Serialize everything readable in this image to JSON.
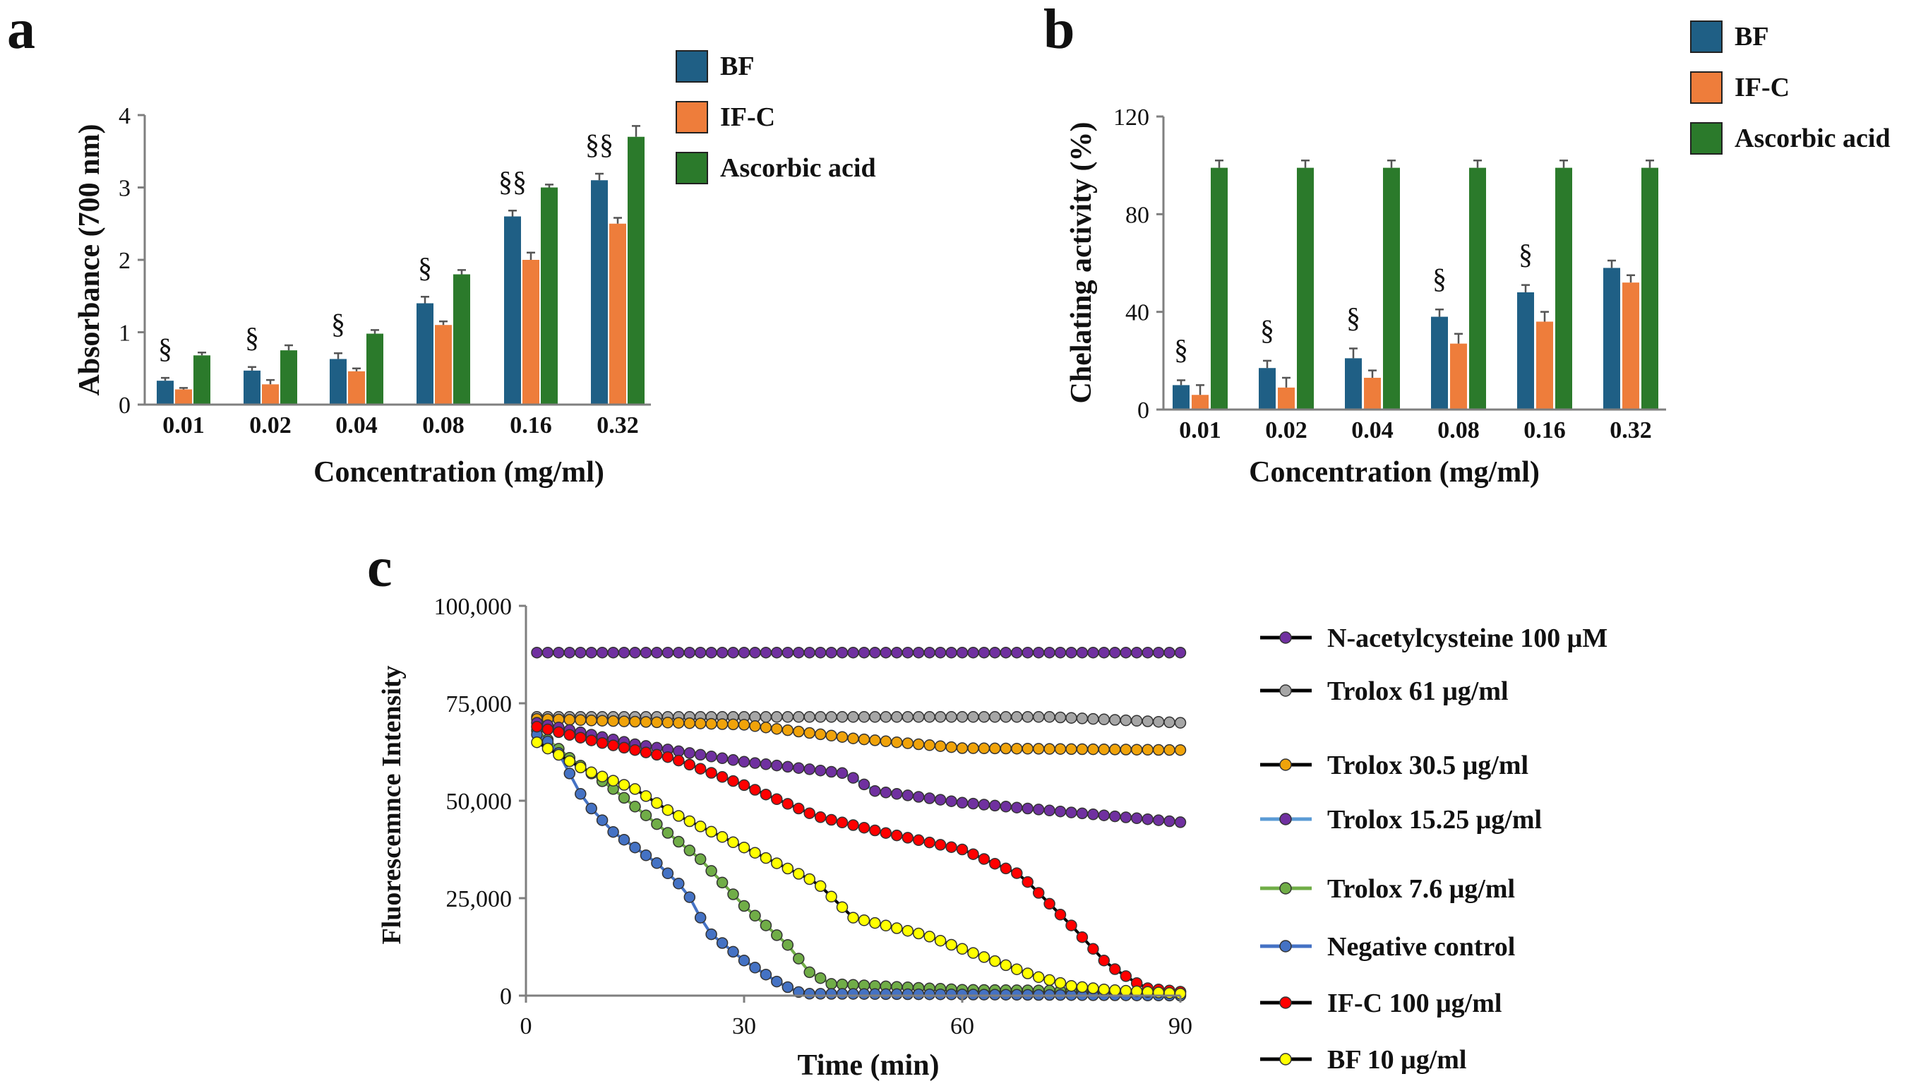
{
  "panels": {
    "a": "a",
    "b": "b",
    "c": "c"
  },
  "chart_data": [
    {
      "id": "a",
      "type": "bar",
      "title": "",
      "xlabel": "Concentration  (mg/ml)",
      "ylabel": "Absorbance (700 nm)",
      "ylim": [
        0,
        4
      ],
      "yticks": [
        "0",
        "1",
        "2",
        "3",
        "4"
      ],
      "categories": [
        "0.01",
        "0.02",
        "0.04",
        "0.08",
        "0.16",
        "0.32"
      ],
      "series": [
        {
          "name": "BF",
          "color": "#1f5f85",
          "values": [
            0.33,
            0.47,
            0.63,
            1.4,
            2.6,
            3.1
          ],
          "errors": [
            0.04,
            0.05,
            0.08,
            0.09,
            0.08,
            0.09
          ]
        },
        {
          "name": "IF-C",
          "color": "#ee7d3b",
          "values": [
            0.21,
            0.28,
            0.46,
            1.1,
            2.0,
            2.5
          ],
          "errors": [
            0.02,
            0.06,
            0.04,
            0.05,
            0.1,
            0.08
          ]
        },
        {
          "name": "Ascorbic acid",
          "color": "#2b7a2b",
          "values": [
            0.68,
            0.75,
            0.98,
            1.8,
            3.0,
            3.7
          ],
          "errors": [
            0.04,
            0.07,
            0.05,
            0.06,
            0.04,
            0.15
          ]
        }
      ],
      "annotations": [
        "§",
        "§",
        "§",
        "§",
        "§§",
        "§§"
      ],
      "legend": "top-right"
    },
    {
      "id": "b",
      "type": "bar",
      "title": "",
      "xlabel": "Concentration  (mg/ml)",
      "ylabel": "Chelating activity (%)",
      "ylim": [
        0,
        120
      ],
      "yticks": [
        "0",
        "40",
        "80",
        "120"
      ],
      "categories": [
        "0.01",
        "0.02",
        "0.04",
        "0.08",
        "0.16",
        "0.32"
      ],
      "series": [
        {
          "name": "BF",
          "color": "#1f5f85",
          "values": [
            10,
            17,
            21,
            38,
            48,
            58
          ],
          "errors": [
            2,
            3,
            4,
            3,
            3,
            3
          ]
        },
        {
          "name": "IF-C",
          "color": "#ee7d3b",
          "values": [
            6,
            9,
            13,
            27,
            36,
            52
          ],
          "errors": [
            4,
            4,
            3,
            4,
            4,
            3
          ]
        },
        {
          "name": "Ascorbic acid",
          "color": "#2b7a2b",
          "values": [
            99,
            99,
            99,
            99,
            99,
            99
          ],
          "errors": [
            3,
            3,
            3,
            3,
            3,
            3
          ]
        }
      ],
      "annotations": [
        "§",
        "§",
        "§",
        "§",
        "§",
        ""
      ],
      "legend": "top-right"
    },
    {
      "id": "c",
      "type": "line",
      "title": "",
      "xlabel": "Time (min)",
      "ylabel": "Fluorescemnce Intensity",
      "xlim": [
        0,
        90
      ],
      "ylim": [
        0,
        100000
      ],
      "xticks": [
        "0",
        "30",
        "60",
        "90"
      ],
      "yticks": [
        "0",
        "25,000",
        "50,000",
        "75,000",
        "100,000"
      ],
      "x_step": 1.5,
      "series": [
        {
          "name": "N-acetylcysteine 100 μM",
          "line": "#000000",
          "marker": "#7030a0",
          "points": [
            [
              1.5,
              88000
            ],
            [
              90,
              88000
            ]
          ]
        },
        {
          "name": "Trolox 61 μg/ml",
          "line": "#000000",
          "marker": "#a6a6a6",
          "points": [
            [
              1.5,
              71500
            ],
            [
              72,
              71500
            ],
            [
              90,
              70000
            ]
          ]
        },
        {
          "name": "Trolox 30.5 μg/ml",
          "line": "#000000",
          "marker": "#f0a30a",
          "points": [
            [
              1.5,
              71000
            ],
            [
              30,
              69500
            ],
            [
              45,
              66000
            ],
            [
              60,
              63500
            ],
            [
              90,
              63000
            ]
          ]
        },
        {
          "name": "Trolox 15.25 μg/ml",
          "line": "#5b9bd5",
          "marker": "#7030a0",
          "points": [
            [
              1.5,
              70000
            ],
            [
              15,
              64500
            ],
            [
              30,
              60000
            ],
            [
              44,
              57000
            ],
            [
              48,
              52500
            ],
            [
              60,
              49500
            ],
            [
              75,
              47000
            ],
            [
              90,
              44500
            ]
          ]
        },
        {
          "name": "Trolox 7.6 μg/ml",
          "line": "#70ad47",
          "marker": "#70ad47",
          "points": [
            [
              1.5,
              68000
            ],
            [
              6,
              61000
            ],
            [
              12,
              53000
            ],
            [
              18,
              44000
            ],
            [
              24,
              35000
            ],
            [
              30,
              23000
            ],
            [
              36,
              13000
            ],
            [
              39,
              6000
            ],
            [
              42,
              3000
            ],
            [
              60,
              1500
            ],
            [
              90,
              1000
            ]
          ]
        },
        {
          "name": "Negative control",
          "line": "#4472c4",
          "marker": "#4472c4",
          "points": [
            [
              1.5,
              67000
            ],
            [
              4,
              64000
            ],
            [
              8,
              50000
            ],
            [
              12,
              42000
            ],
            [
              18,
              34000
            ],
            [
              22,
              27000
            ],
            [
              25,
              16500
            ],
            [
              30,
              9000
            ],
            [
              35,
              3000
            ],
            [
              38,
              500
            ],
            [
              90,
              0
            ]
          ]
        },
        {
          "name": "IF-C 100 μg/ml",
          "line": "#000000",
          "marker": "#ff0000",
          "points": [
            [
              1.5,
              69000
            ],
            [
              10,
              65000
            ],
            [
              20,
              61000
            ],
            [
              30,
              54000
            ],
            [
              40,
              46000
            ],
            [
              50,
              41500
            ],
            [
              60,
              37500
            ],
            [
              68,
              31000
            ],
            [
              75,
              18000
            ],
            [
              80,
              8000
            ],
            [
              85,
              2000
            ],
            [
              90,
              1000
            ]
          ]
        },
        {
          "name": "BF 10 μg/ml",
          "line": "#000000",
          "marker": "#ffff00",
          "points": [
            [
              1.5,
              65000
            ],
            [
              8,
              58000
            ],
            [
              15,
              53000
            ],
            [
              20,
              47000
            ],
            [
              30,
              38000
            ],
            [
              40,
              29000
            ],
            [
              45,
              20000
            ],
            [
              55,
              15500
            ],
            [
              60,
              12000
            ],
            [
              70,
              5000
            ],
            [
              75,
              2500
            ],
            [
              80,
              1500
            ],
            [
              90,
              500
            ]
          ]
        }
      ],
      "legend": "right"
    }
  ]
}
